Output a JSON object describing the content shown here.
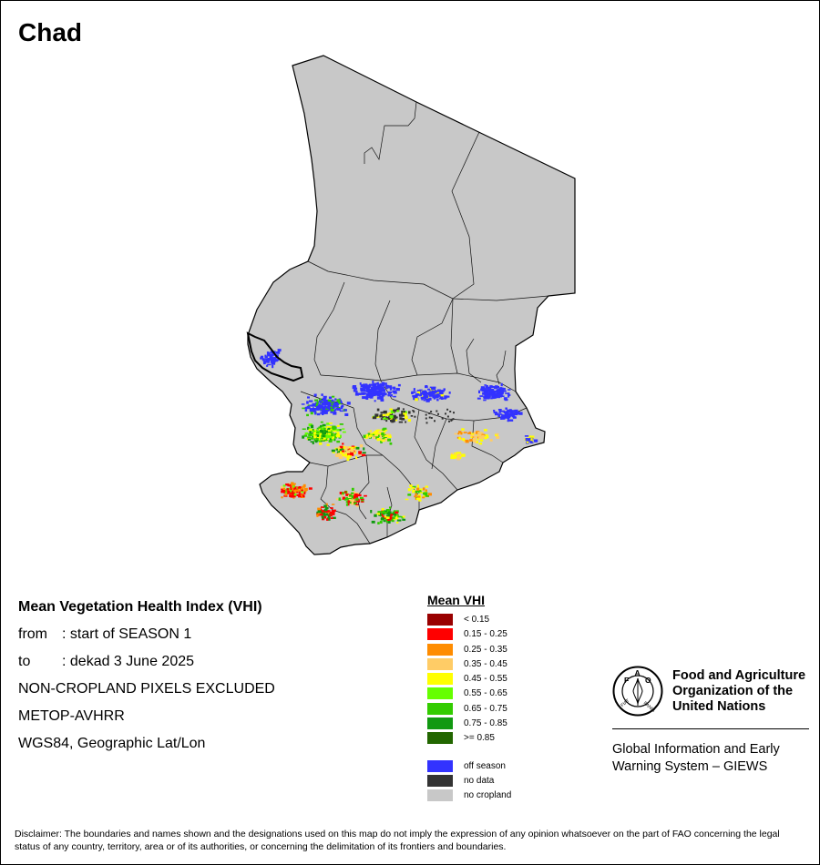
{
  "map": {
    "country": "Chad",
    "features": [
      "country-outline",
      "admin-boundaries",
      "vhi-pixels",
      "lake-chad-outline"
    ]
  },
  "info": {
    "heading": "Mean Vegetation Health Index (VHI)",
    "from_label": "from",
    "from_value": ": start of SEASON 1",
    "to_label": "to",
    "to_value": ": dekad 3 June 2025",
    "line3": "NON-CROPLAND PIXELS EXCLUDED",
    "line4": "METOP-AVHRR",
    "line5": "WGS84, Geographic Lat/Lon"
  },
  "legend": {
    "title": "Mean VHI",
    "classes": [
      {
        "label": "< 0.15",
        "color": "#990000"
      },
      {
        "label": "0.15 - 0.25",
        "color": "#ff0000"
      },
      {
        "label": "0.25 - 0.35",
        "color": "#ff8c00"
      },
      {
        "label": "0.35 - 0.45",
        "color": "#ffcc66"
      },
      {
        "label": "0.45 - 0.55",
        "color": "#ffff00"
      },
      {
        "label": "0.55 - 0.65",
        "color": "#66ff00"
      },
      {
        "label": "0.65 - 0.75",
        "color": "#33cc00"
      },
      {
        "label": "0.75 - 0.85",
        "color": "#119911"
      },
      {
        "label": ">= 0.85",
        "color": "#226600"
      }
    ],
    "extra": [
      {
        "label": "off season",
        "color": "#3333ff"
      },
      {
        "label": "no data",
        "color": "#333333"
      },
      {
        "label": "no cropland",
        "color": "#c8c8c8"
      }
    ]
  },
  "org": {
    "logo_text": "FAO",
    "logo_ring_text": "FIAT PANIS",
    "name_line1": "Food and Agriculture",
    "name_line2": "Organization of the",
    "name_line3": "United Nations",
    "giews_line1": "Global Information and Early",
    "giews_line2": "Warning System – GIEWS"
  },
  "disclaimer": "Disclaimer: The boundaries and names shown and the designations used on this map do not imply the expression of any opinion whatsoever on the part of FAO concerning the legal status of any country, territory, area or of its authorities, or concerning the delimitation of its frontiers and boundaries."
}
